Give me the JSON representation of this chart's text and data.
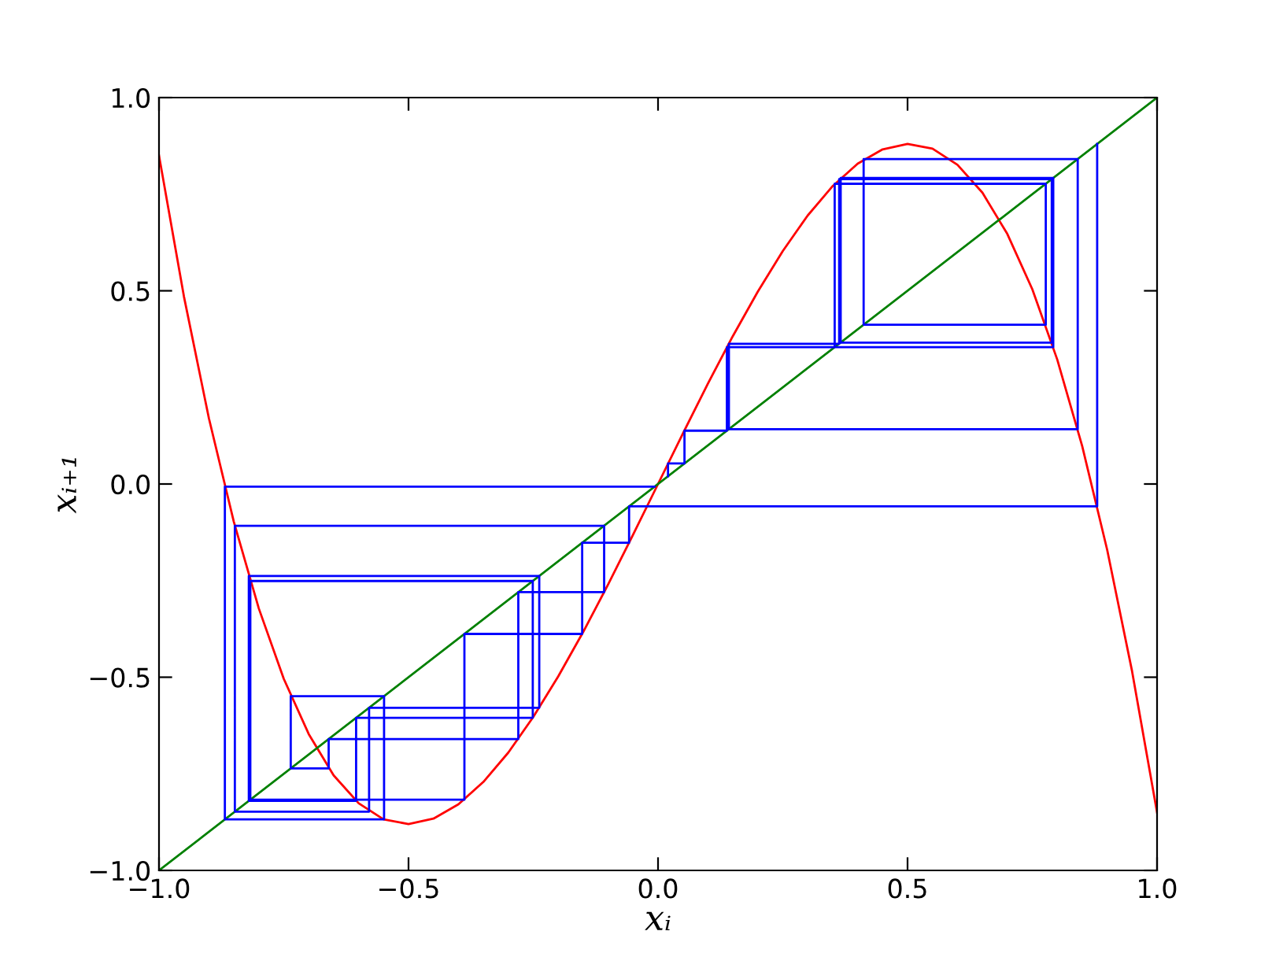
{
  "chart_data": {
    "type": "line",
    "xlabel": "xᵢ",
    "ylabel": "xᵢ₊₁",
    "xlim": [
      -1.0,
      1.0
    ],
    "ylim": [
      -1.0,
      1.0
    ],
    "xticks": [
      {
        "value": -1.0,
        "label": "−1.0"
      },
      {
        "value": -0.5,
        "label": "−0.5"
      },
      {
        "value": 0.0,
        "label": "0.0"
      },
      {
        "value": 0.5,
        "label": "0.5"
      },
      {
        "value": 1.0,
        "label": "1.0"
      }
    ],
    "yticks": [
      {
        "value": -1.0,
        "label": "−1.0"
      },
      {
        "value": -0.5,
        "label": "−0.5"
      },
      {
        "value": 0.0,
        "label": "0.0"
      },
      {
        "value": 0.5,
        "label": "0.5"
      },
      {
        "value": 1.0,
        "label": "1.0"
      }
    ],
    "grid": false,
    "marker": "none",
    "line_style": "solid",
    "series": [
      {
        "color": "#ff0000",
        "x": [
          -1.0,
          -0.95,
          -0.9,
          -0.85,
          -0.8,
          -0.75,
          -0.7,
          -0.65,
          -0.6,
          -0.55,
          -0.5,
          -0.45,
          -0.4,
          -0.35,
          -0.3,
          -0.25,
          -0.2,
          -0.15,
          -0.1,
          -0.05,
          0.0,
          0.05,
          0.1,
          0.15,
          0.2,
          0.25,
          0.3,
          0.35,
          0.4,
          0.45,
          0.5,
          0.55,
          0.6,
          0.65,
          0.7,
          0.75,
          0.8,
          0.85,
          0.9,
          0.95,
          1.0
        ],
        "values": [
          0.85,
          0.485,
          0.17,
          -0.098,
          -0.322,
          -0.504,
          -0.647,
          -0.754,
          -0.826,
          -0.868,
          -0.88,
          -0.866,
          -0.829,
          -0.771,
          -0.695,
          -0.603,
          -0.498,
          -0.383,
          -0.26,
          -0.131,
          0.0,
          0.131,
          0.26,
          0.383,
          0.498,
          0.603,
          0.695,
          0.771,
          0.829,
          0.866,
          0.88,
          0.868,
          0.826,
          0.754,
          0.647,
          0.504,
          0.322,
          0.098,
          -0.17,
          -0.485,
          -0.85
        ]
      },
      {
        "color": "#008000",
        "x": [
          -1.0,
          1.0
        ],
        "values": [
          -1.0,
          1.0
        ]
      },
      {
        "color": "#0000ff",
        "x": [
          0.02,
          0.02,
          0.053,
          0.053,
          0.138,
          0.138,
          0.354,
          0.354,
          0.777,
          0.777,
          0.412,
          0.412,
          0.841,
          0.841,
          0.142,
          0.142,
          0.363,
          0.363,
          0.789,
          0.789,
          0.366,
          0.366,
          0.792,
          0.792,
          0.354
        ],
        "values": [
          0.02,
          0.053,
          0.053,
          0.138,
          0.138,
          0.354,
          0.354,
          0.777,
          0.777,
          0.412,
          0.412,
          0.841,
          0.841,
          0.142,
          0.142,
          0.363,
          0.363,
          0.789,
          0.789,
          0.366,
          0.366,
          0.792,
          0.792,
          0.354,
          0.354
        ]
      },
      {
        "color": "#0000ff",
        "x": [
          0.88,
          0.88,
          -0.058,
          -0.058,
          -0.152,
          -0.152,
          -0.388,
          -0.388,
          -0.817,
          -0.817,
          -0.251,
          -0.251,
          -0.605,
          -0.605,
          -0.82,
          -0.82,
          -0.238,
          -0.238,
          -0.579,
          -0.579,
          -0.848,
          -0.848,
          -0.108,
          -0.108,
          -0.28,
          -0.28,
          -0.66,
          -0.66,
          -0.736,
          -0.736,
          -0.549,
          -0.549,
          -0.868,
          -0.868,
          -0.007
        ],
        "values": [
          0.88,
          -0.058,
          -0.058,
          -0.152,
          -0.152,
          -0.388,
          -0.388,
          -0.817,
          -0.817,
          -0.251,
          -0.251,
          -0.605,
          -0.605,
          -0.82,
          -0.82,
          -0.238,
          -0.238,
          -0.579,
          -0.579,
          -0.848,
          -0.848,
          -0.108,
          -0.108,
          -0.28,
          -0.28,
          -0.66,
          -0.66,
          -0.736,
          -0.736,
          -0.549,
          -0.549,
          -0.868,
          -0.868,
          -0.007,
          -0.007
        ]
      }
    ]
  }
}
